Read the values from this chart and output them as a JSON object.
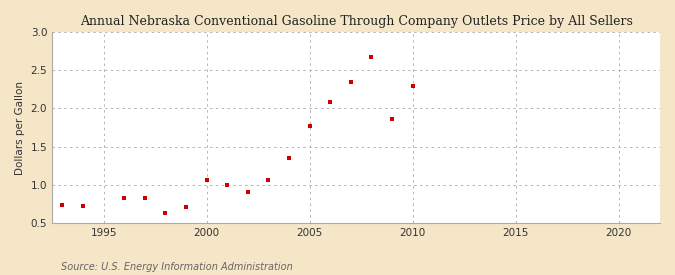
{
  "title": "Annual Nebraska Conventional Gasoline Through Company Outlets Price by All Sellers",
  "ylabel": "Dollars per Gallon",
  "source": "Source: U.S. Energy Information Administration",
  "outer_bg": "#f5e6c8",
  "plot_bg": "#ffffff",
  "marker_color": "#cc0000",
  "xlim": [
    1992.5,
    2022
  ],
  "ylim": [
    0.5,
    3.0
  ],
  "xticks": [
    1995,
    2000,
    2005,
    2010,
    2015,
    2020
  ],
  "yticks": [
    0.5,
    1.0,
    1.5,
    2.0,
    2.5,
    3.0
  ],
  "data": [
    [
      1993,
      0.74
    ],
    [
      1994,
      0.72
    ],
    [
      1996,
      0.83
    ],
    [
      1997,
      0.83
    ],
    [
      1998,
      0.63
    ],
    [
      1999,
      0.71
    ],
    [
      2000,
      1.07
    ],
    [
      2001,
      1.0
    ],
    [
      2002,
      0.91
    ],
    [
      2003,
      1.07
    ],
    [
      2004,
      1.35
    ],
    [
      2005,
      1.77
    ],
    [
      2006,
      2.09
    ],
    [
      2007,
      2.35
    ],
    [
      2008,
      2.67
    ],
    [
      2009,
      1.86
    ],
    [
      2010,
      2.29
    ]
  ]
}
